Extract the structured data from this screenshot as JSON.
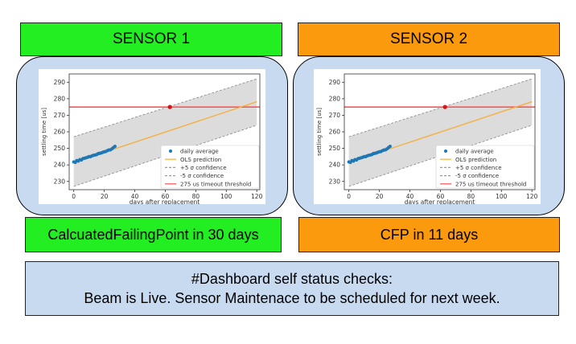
{
  "sensors": [
    {
      "title": "SENSOR 1",
      "result": "CalcuatedFailingPoint in 30 days",
      "header_color": "#22ee22"
    },
    {
      "title": "SENSOR 2",
      "result": "CFP in 11 days",
      "header_color": "#fb9a0c"
    }
  ],
  "status": {
    "line1": "#Dashboard self status checks:",
    "line2": "Beam is Live. Sensor Maintenace to be scheduled for next week."
  },
  "chart_data": [
    {
      "type": "line",
      "xlabel": "days after replacement",
      "ylabel": "settling time [us]",
      "xlim": [
        -3,
        122
      ],
      "ylim": [
        225,
        295
      ],
      "xticks": [
        0,
        20,
        40,
        60,
        80,
        100,
        120
      ],
      "yticks": [
        230,
        240,
        250,
        260,
        270,
        280,
        290
      ],
      "legend_position": "lower-right",
      "legend": [
        "daily average",
        "OLS prediction",
        "+5 σ confidence",
        "-5 σ confidence",
        "275 us timeout threshold"
      ],
      "series": [
        {
          "name": "daily average",
          "type": "scatter",
          "color": "#1f77b4",
          "x": [
            0,
            1,
            2,
            3,
            4,
            5,
            6,
            7,
            8,
            9,
            10,
            11,
            12,
            13,
            14,
            15,
            16,
            17,
            18,
            19,
            20,
            21,
            22,
            23,
            24,
            25,
            26,
            27
          ],
          "y": [
            241.8,
            241.5,
            242.6,
            242.3,
            243.2,
            243.0,
            243.8,
            244.0,
            244.3,
            244.6,
            245.0,
            245.0,
            245.5,
            245.8,
            246.0,
            246.2,
            246.8,
            247.0,
            247.2,
            247.6,
            247.9,
            248.1,
            248.6,
            249.0,
            249.1,
            249.7,
            250.5,
            251.2
          ]
        },
        {
          "name": "OLS prediction",
          "type": "line",
          "color": "#f5b041",
          "x": [
            0,
            120
          ],
          "y": [
            241.5,
            278.2
          ]
        },
        {
          "name": "+5 σ confidence",
          "type": "dashed",
          "color": "#999999",
          "x": [
            0,
            120
          ],
          "y": [
            257,
            292
          ]
        },
        {
          "name": "-5 σ confidence",
          "type": "dashed",
          "color": "#999999",
          "x": [
            0,
            120
          ],
          "y": [
            227,
            264
          ]
        },
        {
          "name": "275 us timeout threshold",
          "type": "hline",
          "color": "#ff5555",
          "y": 275
        },
        {
          "name": "failing point",
          "type": "point",
          "color": "#dd1111",
          "x": 63,
          "y": 275
        }
      ]
    },
    {
      "type": "line",
      "xlabel": "days after replacement",
      "ylabel": "settling time [us]",
      "xlim": [
        -3,
        122
      ],
      "ylim": [
        225,
        295
      ],
      "xticks": [
        0,
        20,
        40,
        60,
        80,
        100,
        120
      ],
      "yticks": [
        230,
        240,
        250,
        260,
        270,
        280,
        290
      ],
      "legend_position": "lower-right",
      "legend": [
        "daily average",
        "OLS prediction",
        "+5 σ confidence",
        "-5 σ confidence",
        "275 us timeout threshold"
      ],
      "series": [
        {
          "name": "daily average",
          "type": "scatter",
          "color": "#1f77b4",
          "x": [
            0,
            1,
            2,
            3,
            4,
            5,
            6,
            7,
            8,
            9,
            10,
            11,
            12,
            13,
            14,
            15,
            16,
            17,
            18,
            19,
            20,
            21,
            22,
            23,
            24,
            25,
            26,
            27
          ],
          "y": [
            241.8,
            241.5,
            242.6,
            242.3,
            243.2,
            243.0,
            243.8,
            244.0,
            244.3,
            244.6,
            245.0,
            245.0,
            245.5,
            245.8,
            246.0,
            246.2,
            246.8,
            247.0,
            247.2,
            247.6,
            247.9,
            248.1,
            248.6,
            249.0,
            249.1,
            249.7,
            250.5,
            251.2
          ]
        },
        {
          "name": "OLS prediction",
          "type": "line",
          "color": "#f5b041",
          "x": [
            0,
            120
          ],
          "y": [
            241.5,
            278.2
          ]
        },
        {
          "name": "+5 σ confidence",
          "type": "dashed",
          "color": "#999999",
          "x": [
            0,
            120
          ],
          "y": [
            257,
            292
          ]
        },
        {
          "name": "-5 σ confidence",
          "type": "dashed",
          "color": "#999999",
          "x": [
            0,
            120
          ],
          "y": [
            227,
            264
          ]
        },
        {
          "name": "275 us timeout threshold",
          "type": "hline",
          "color": "#ff5555",
          "y": 275
        },
        {
          "name": "failing point",
          "type": "point",
          "color": "#dd1111",
          "x": 63,
          "y": 275
        }
      ]
    }
  ]
}
